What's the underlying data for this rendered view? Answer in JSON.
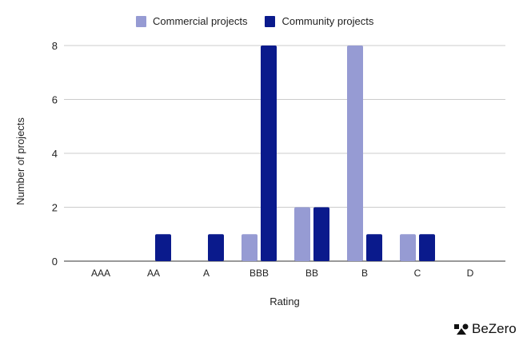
{
  "chart_data": {
    "type": "bar",
    "categories": [
      "AAA",
      "AA",
      "A",
      "BBB",
      "BB",
      "B",
      "C",
      "D"
    ],
    "series": [
      {
        "name": "Commercial projects",
        "color": "#969bd3",
        "values": [
          0,
          0,
          0,
          1,
          2,
          8,
          1,
          0
        ]
      },
      {
        "name": "Community projects",
        "color": "#0a1a8c",
        "values": [
          0,
          1,
          1,
          8,
          2,
          1,
          1,
          0
        ]
      }
    ],
    "xlabel": "Rating",
    "ylabel": "Number of projects",
    "ylim": [
      0,
      8
    ],
    "yticks": [
      0,
      2,
      4,
      6,
      8
    ],
    "grid": true,
    "legend": "top"
  },
  "brand": {
    "logo_text": "BeZero"
  }
}
